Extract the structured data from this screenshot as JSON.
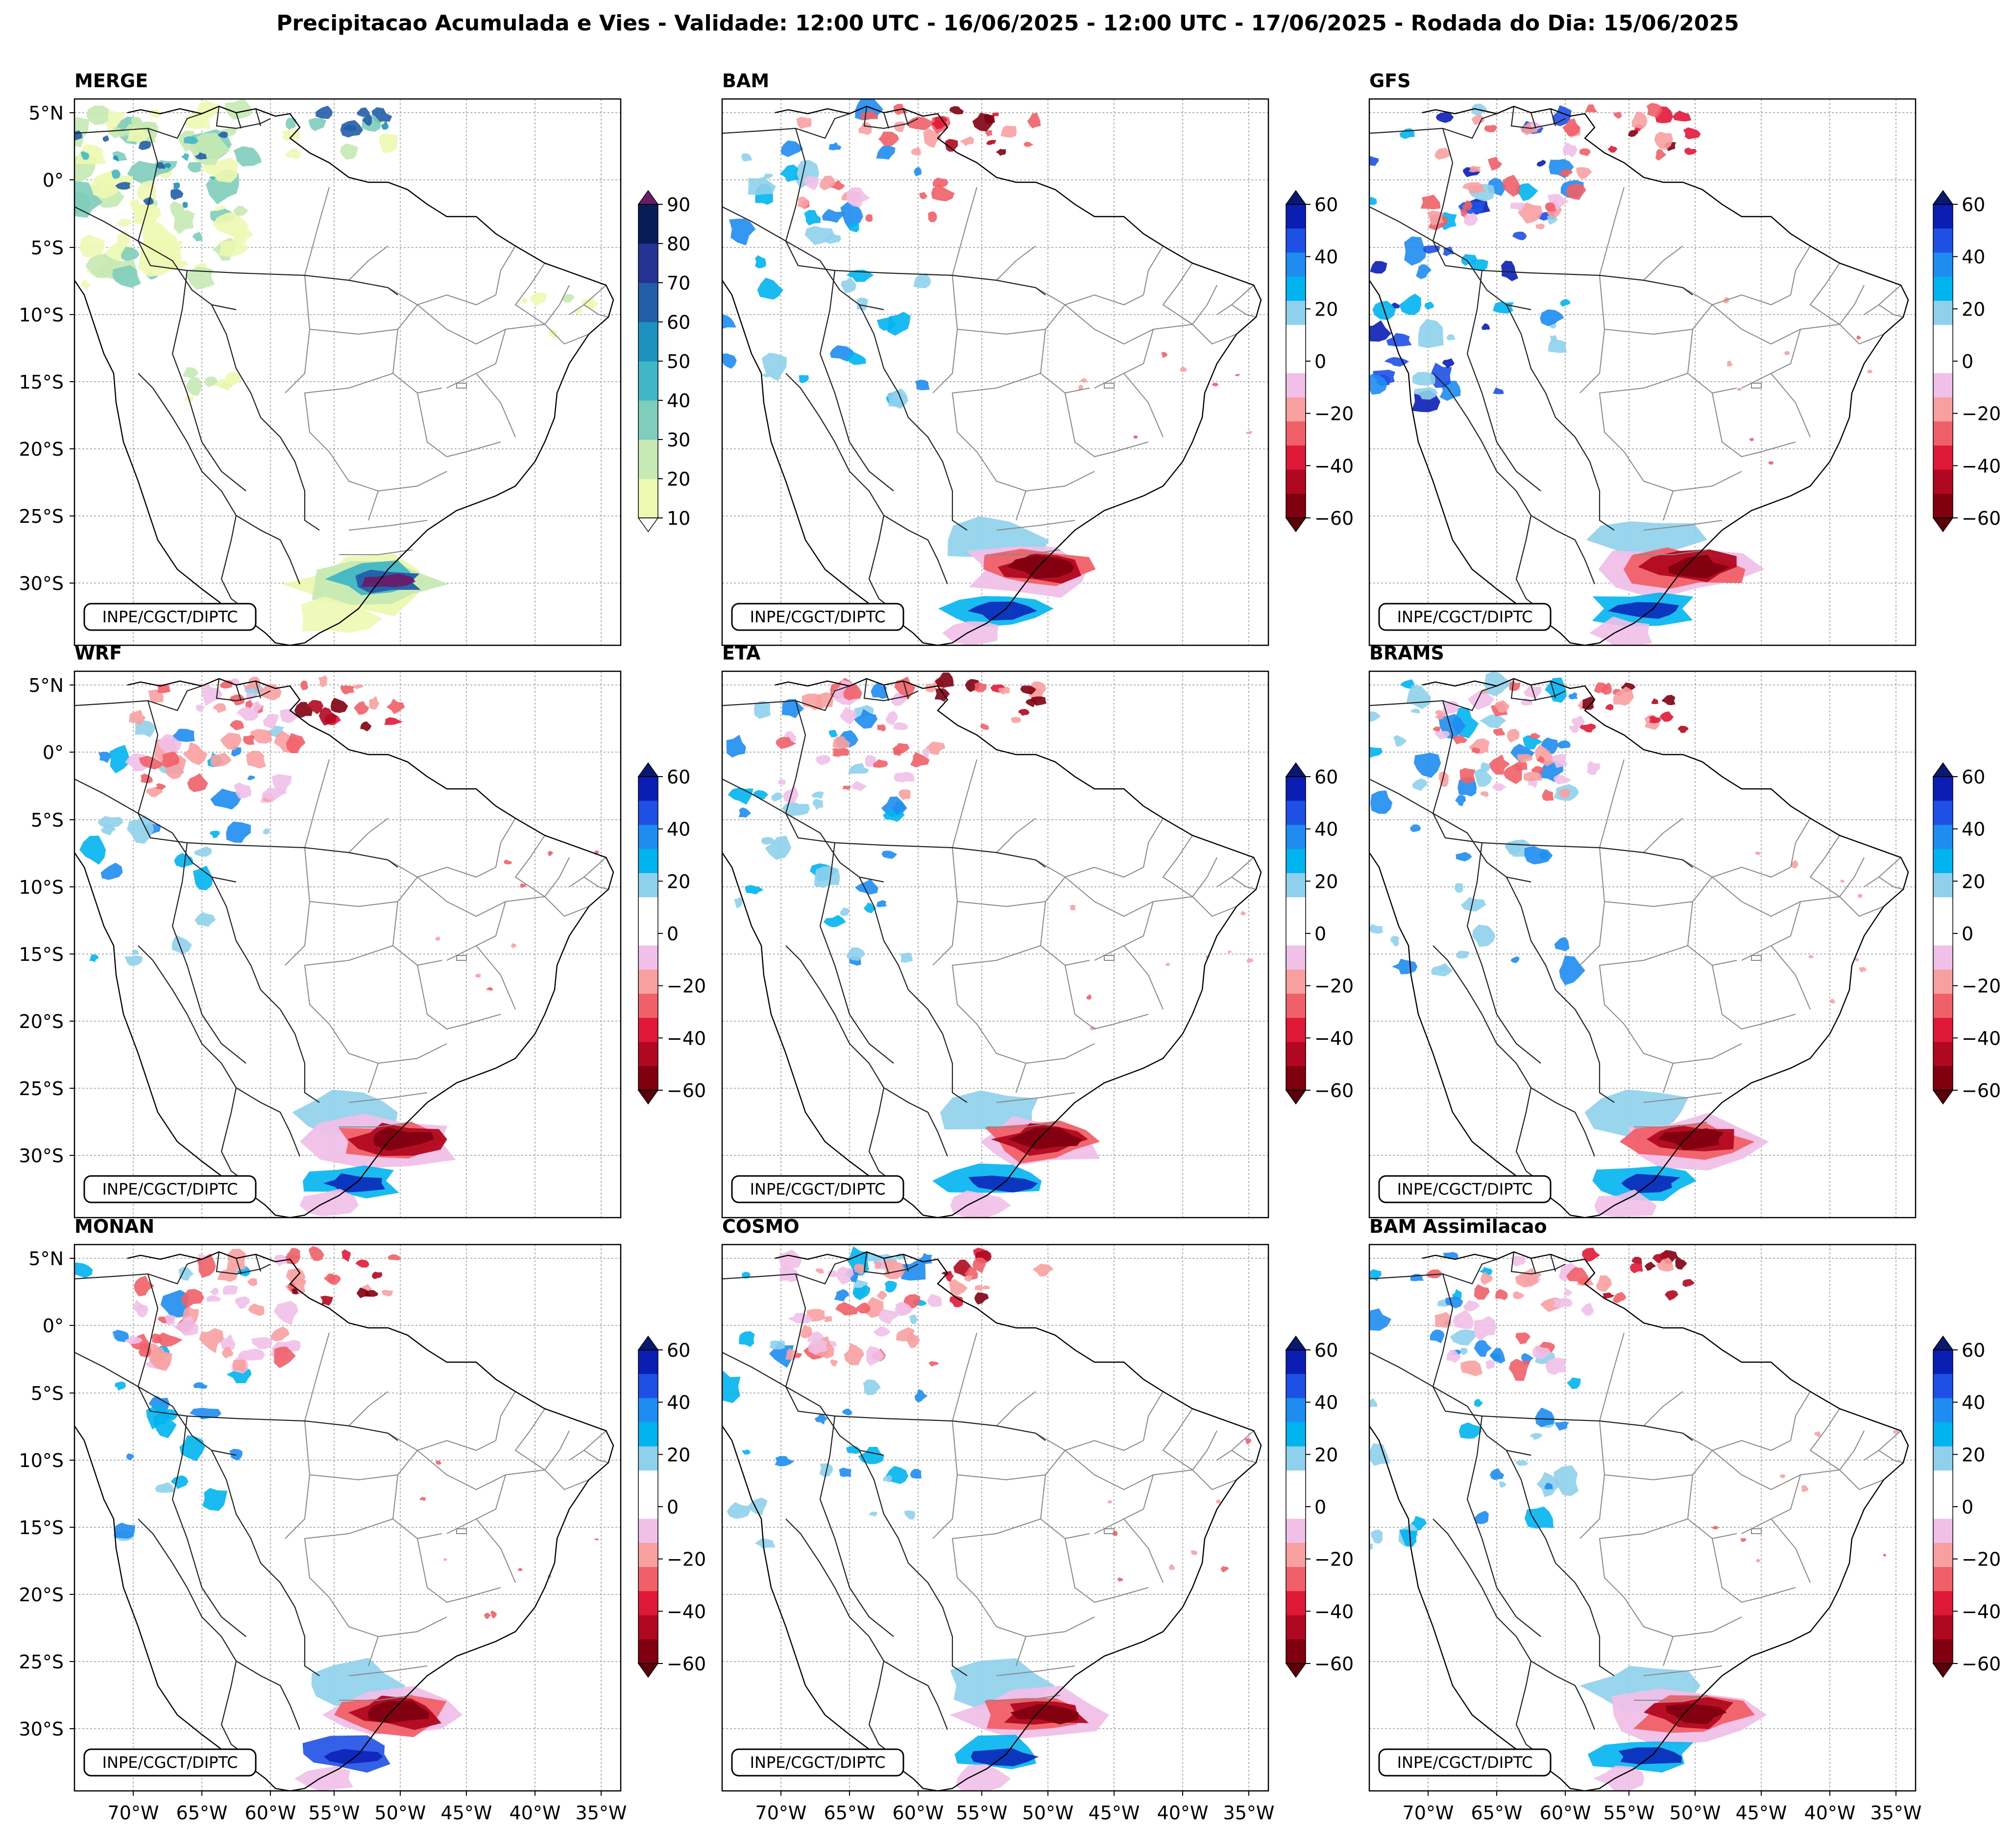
{
  "title": "Precipitacao Acumulada e Vies - Validade: 12:00 UTC - 16/06/2025 - 12:00 UTC - 17/06/2025 - Rodada do Dia: 15/06/2025",
  "credit": "INPE/CGCT/DIPTC",
  "lat_ticks": [
    "5°N",
    "0°",
    "5°S",
    "10°S",
    "15°S",
    "20°S",
    "25°S",
    "30°S"
  ],
  "lon_ticks": [
    "70°W",
    "65°W",
    "60°W",
    "55°W",
    "50°W",
    "45°W",
    "40°W",
    "35°W"
  ],
  "panels": [
    {
      "label": "MERGE",
      "kind": "precip"
    },
    {
      "label": "BAM",
      "kind": "bias"
    },
    {
      "label": "GFS",
      "kind": "bias"
    },
    {
      "label": "WRF",
      "kind": "bias"
    },
    {
      "label": "ETA",
      "kind": "bias"
    },
    {
      "label": "BRAMS",
      "kind": "bias"
    },
    {
      "label": "MONAN",
      "kind": "bias"
    },
    {
      "label": "COSMO",
      "kind": "bias"
    },
    {
      "label": "BAM Assimilacao",
      "kind": "bias"
    }
  ],
  "precip_scale": {
    "ticks": [
      "10",
      "20",
      "30",
      "40",
      "50",
      "60",
      "70",
      "80",
      "90"
    ],
    "colors": [
      "#edf8b1",
      "#c7e9b4",
      "#7fcdbb",
      "#41b6c4",
      "#1d91c0",
      "#225ea8",
      "#253494",
      "#081d58"
    ],
    "under_color": "#ffffff",
    "over_color": "#6a1b6a"
  },
  "bias_scale": {
    "ticks": [
      "60",
      "40",
      "20",
      "0",
      "−20",
      "−40",
      "−60"
    ],
    "colors_top_to_bottom": [
      "#0a1eb4",
      "#1e50e6",
      "#1e8cf0",
      "#00b4f0",
      "#8fd0ec",
      "#ffffff",
      "#ffffff",
      "#f0c0e8",
      "#f8a0a0",
      "#f06068",
      "#e01838",
      "#b00820",
      "#800010"
    ],
    "over_color": "#08196e",
    "under_color": "#5a0008"
  }
}
